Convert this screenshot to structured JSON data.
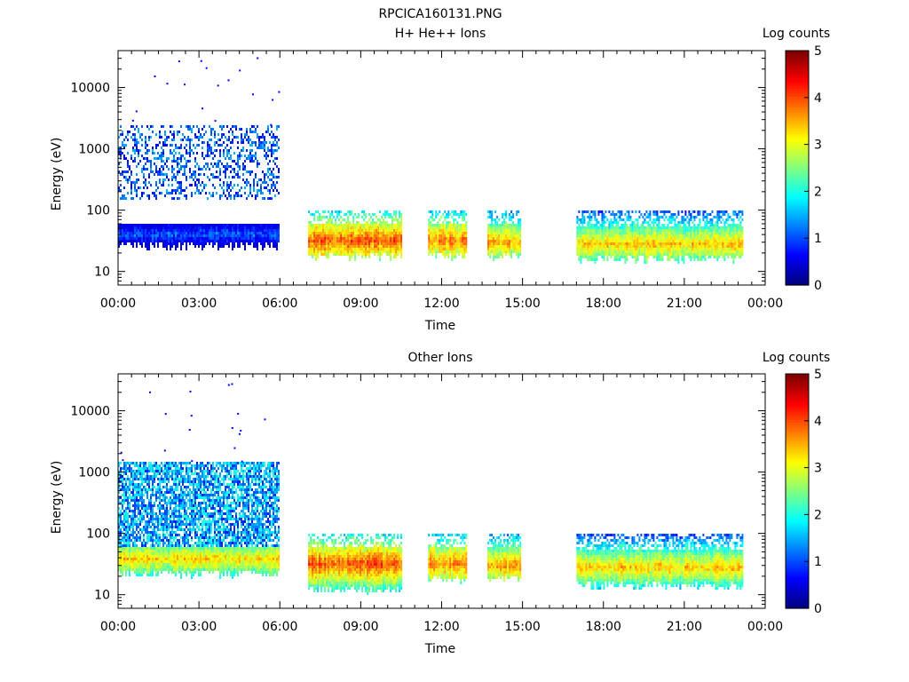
{
  "figure_title": "RPCICA160131.PNG",
  "chart_data": [
    {
      "type": "heatmap",
      "title": "H+ He++ Ions",
      "xlabel": "Time",
      "ylabel": "Energy (eV)",
      "x_ticks": [
        "00:00",
        "03:00",
        "06:00",
        "09:00",
        "12:00",
        "15:00",
        "18:00",
        "21:00",
        "00:00"
      ],
      "x_range_hours": [
        0,
        24
      ],
      "y_scale": "log",
      "y_ticks": [
        10,
        100,
        1000,
        10000
      ],
      "y_tick_labels": [
        "10",
        "100",
        "1000",
        "10000"
      ],
      "y_range": [
        6,
        40000
      ],
      "colorbar": {
        "label": "Log counts",
        "range": [
          0,
          5
        ],
        "ticks": [
          "0",
          "1",
          "2",
          "3",
          "4",
          "5"
        ],
        "colormap": "jet"
      },
      "segments": [
        {
          "start_h": 0.0,
          "end_h": 5.95,
          "band_low_eV": 26,
          "band_high_eV": 58,
          "band_level": 1.1,
          "tail_high_eV": 2500,
          "tail_level": 1.3,
          "tail_density": 0.35,
          "tail_low_eV": 150,
          "peak_eV": 40
        },
        {
          "start_h": 7.05,
          "end_h": 10.5,
          "band_low_eV": 17,
          "band_high_eV": 95,
          "band_level": 4.0,
          "peak_eV": 32,
          "sparse_top": true
        },
        {
          "start_h": 11.5,
          "end_h": 12.9,
          "band_low_eV": 18,
          "band_high_eV": 95,
          "band_level": 3.8,
          "peak_eV": 32,
          "sparse_top": true
        },
        {
          "start_h": 13.7,
          "end_h": 14.9,
          "band_low_eV": 18,
          "band_high_eV": 95,
          "band_level": 3.6,
          "peak_eV": 30,
          "sparse_top": true
        },
        {
          "start_h": 17.0,
          "end_h": 23.15,
          "band_low_eV": 16,
          "band_high_eV": 95,
          "band_level": 3.4,
          "peak_eV": 28,
          "sparse_top": true
        }
      ]
    },
    {
      "type": "heatmap",
      "title": "Other Ions",
      "xlabel": "Time",
      "ylabel": "Energy (eV)",
      "x_ticks": [
        "00:00",
        "03:00",
        "06:00",
        "09:00",
        "12:00",
        "15:00",
        "18:00",
        "21:00",
        "00:00"
      ],
      "x_range_hours": [
        0,
        24
      ],
      "y_scale": "log",
      "y_ticks": [
        10,
        100,
        1000,
        10000
      ],
      "y_tick_labels": [
        "10",
        "100",
        "1000",
        "10000"
      ],
      "y_range": [
        6,
        40000
      ],
      "colorbar": {
        "label": "Log counts",
        "range": [
          0,
          5
        ],
        "ticks": [
          "0",
          "1",
          "2",
          "3",
          "4",
          "5"
        ],
        "colormap": "jet"
      },
      "segments": [
        {
          "start_h": 0.0,
          "end_h": 5.95,
          "band_low_eV": 22,
          "band_high_eV": 60,
          "band_level": 3.3,
          "peak_eV": 38,
          "tail_high_eV": 1500,
          "tail_level": 1.8,
          "tail_density": 0.75,
          "tail_low_eV": 60
        },
        {
          "start_h": 7.05,
          "end_h": 10.5,
          "band_low_eV": 12,
          "band_high_eV": 95,
          "band_level": 4.0,
          "peak_eV": 32,
          "sparse_top": true
        },
        {
          "start_h": 11.5,
          "end_h": 12.9,
          "band_low_eV": 18,
          "band_high_eV": 95,
          "band_level": 3.8,
          "peak_eV": 32,
          "sparse_top": true
        },
        {
          "start_h": 13.7,
          "end_h": 14.9,
          "band_low_eV": 18,
          "band_high_eV": 95,
          "band_level": 3.6,
          "peak_eV": 30,
          "sparse_top": true
        },
        {
          "start_h": 17.0,
          "end_h": 23.15,
          "band_low_eV": 14,
          "band_high_eV": 95,
          "band_level": 3.4,
          "peak_eV": 28,
          "sparse_top": true
        }
      ]
    }
  ]
}
